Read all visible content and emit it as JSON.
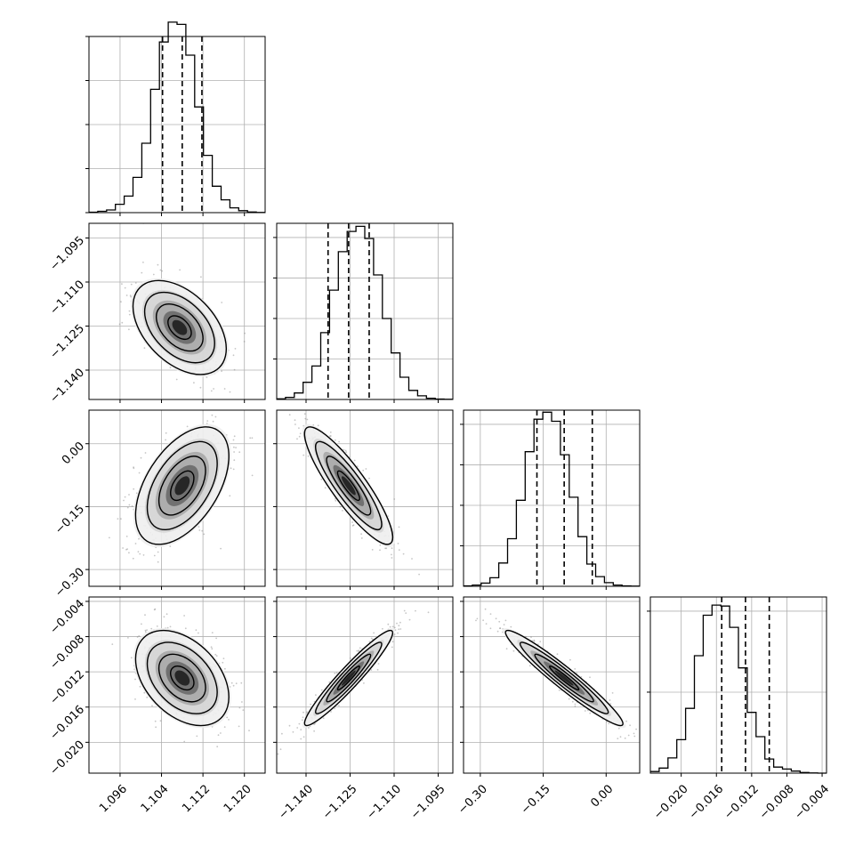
{
  "chart_data": {
    "type": "corner",
    "title": "",
    "parameters": [
      "",
      "",
      "",
      ""
    ],
    "grid": true,
    "colors": {
      "hist_line": "#000000",
      "contour": "#000000",
      "points": "#808080",
      "grid": "#b0b0b0",
      "frame": "#000000"
    },
    "diagonal": [
      {
        "param_index": 0,
        "range": [
          1.09,
          1.124
        ],
        "quantiles": [
          1.1042,
          1.108,
          1.1118
        ],
        "hist_edges_start": 1.09,
        "hist_bin_width": 0.0017,
        "hist_counts": [
          2,
          6,
          12,
          38,
          75,
          160,
          315,
          560,
          775,
          865,
          855,
          715,
          480,
          260,
          120,
          58,
          22,
          9,
          3,
          1
        ]
      },
      {
        "param_index": 1,
        "range": [
          -1.15,
          -1.09
        ],
        "quantiles": [
          -1.1325,
          -1.1255,
          -1.1185
        ],
        "hist_edges_start": -1.15,
        "hist_bin_width": 0.003,
        "hist_counts": [
          3,
          10,
          32,
          85,
          165,
          330,
          540,
          730,
          830,
          855,
          795,
          615,
          400,
          230,
          110,
          45,
          18,
          6,
          2,
          1
        ]
      },
      {
        "param_index": 2,
        "range": [
          -0.34,
          0.08
        ],
        "quantiles": [
          -0.165,
          -0.1,
          -0.033
        ],
        "hist_edges_start": -0.34,
        "hist_bin_width": 0.021,
        "hist_counts": [
          2,
          6,
          16,
          42,
          115,
          235,
          425,
          665,
          825,
          860,
          815,
          650,
          440,
          245,
          110,
          48,
          18,
          6,
          2,
          1
        ]
      },
      {
        "param_index": 3,
        "range": [
          -0.0235,
          -0.0035
        ],
        "quantiles": [
          -0.0154,
          -0.0127,
          -0.01
        ],
        "hist_edges_start": -0.0235,
        "hist_bin_width": 0.001,
        "hist_counts": [
          8,
          25,
          75,
          165,
          320,
          580,
          780,
          830,
          825,
          720,
          520,
          300,
          180,
          70,
          30,
          20,
          10,
          3,
          1,
          0
        ]
      }
    ],
    "pairs": [
      {
        "x_param": 0,
        "y_param": 1,
        "center": [
          1.1075,
          -1.1255
        ],
        "sigma": [
          0.0045,
          0.008
        ],
        "rho": -0.45
      },
      {
        "x_param": 0,
        "y_param": 2,
        "center": [
          1.108,
          -0.1
        ],
        "sigma": [
          0.0045,
          0.07
        ],
        "rho": 0.5
      },
      {
        "x_param": 1,
        "y_param": 2,
        "center": [
          -1.1255,
          -0.1
        ],
        "sigma": [
          0.0075,
          0.07
        ],
        "rho": -0.88
      },
      {
        "x_param": 0,
        "y_param": 3,
        "center": [
          1.108,
          -0.0127
        ],
        "sigma": [
          0.0045,
          0.0027
        ],
        "rho": -0.4
      },
      {
        "x_param": 1,
        "y_param": 3,
        "center": [
          -1.1255,
          -0.0127
        ],
        "sigma": [
          0.0075,
          0.0027
        ],
        "rho": 0.95
      },
      {
        "x_param": 2,
        "y_param": 3,
        "center": [
          -0.1,
          -0.0127
        ],
        "sigma": [
          0.07,
          0.0027
        ],
        "rho": -0.96
      }
    ],
    "contour_levels_sigma": [
      0.5,
      1.0,
      1.5,
      2.0
    ],
    "ticks": [
      {
        "param_index": 0,
        "values": [
          1.096,
          1.104,
          1.112,
          1.12
        ],
        "labels": [
          "1.096",
          "1.104",
          "1.112",
          "1.120"
        ]
      },
      {
        "param_index": 1,
        "values": [
          -1.14,
          -1.125,
          -1.11,
          -1.095
        ],
        "labels": [
          "−1.140",
          "−1.125",
          "−1.110",
          "−1.095"
        ]
      },
      {
        "param_index": 2,
        "values": [
          -0.3,
          -0.15,
          0.0
        ],
        "labels": [
          "−0.30",
          "−0.15",
          "0.00"
        ]
      },
      {
        "param_index": 3,
        "values": [
          -0.02,
          -0.016,
          -0.012,
          -0.008,
          -0.004
        ],
        "labels": [
          "−0.020",
          "−0.016",
          "−0.012",
          "−0.008",
          "−0.004"
        ]
      }
    ],
    "diag_y_ticks": [
      {
        "param_index": 0,
        "values": [
          0,
          200,
          400,
          600,
          800
        ],
        "ymax": 800
      },
      {
        "param_index": 1,
        "values": [
          200,
          400,
          600,
          800
        ],
        "ymax": 870
      },
      {
        "param_index": 2,
        "values": [
          200,
          400,
          600,
          800
        ],
        "ymax": 870
      },
      {
        "param_index": 3,
        "values": [
          400,
          800
        ],
        "ymax": 870
      }
    ]
  }
}
